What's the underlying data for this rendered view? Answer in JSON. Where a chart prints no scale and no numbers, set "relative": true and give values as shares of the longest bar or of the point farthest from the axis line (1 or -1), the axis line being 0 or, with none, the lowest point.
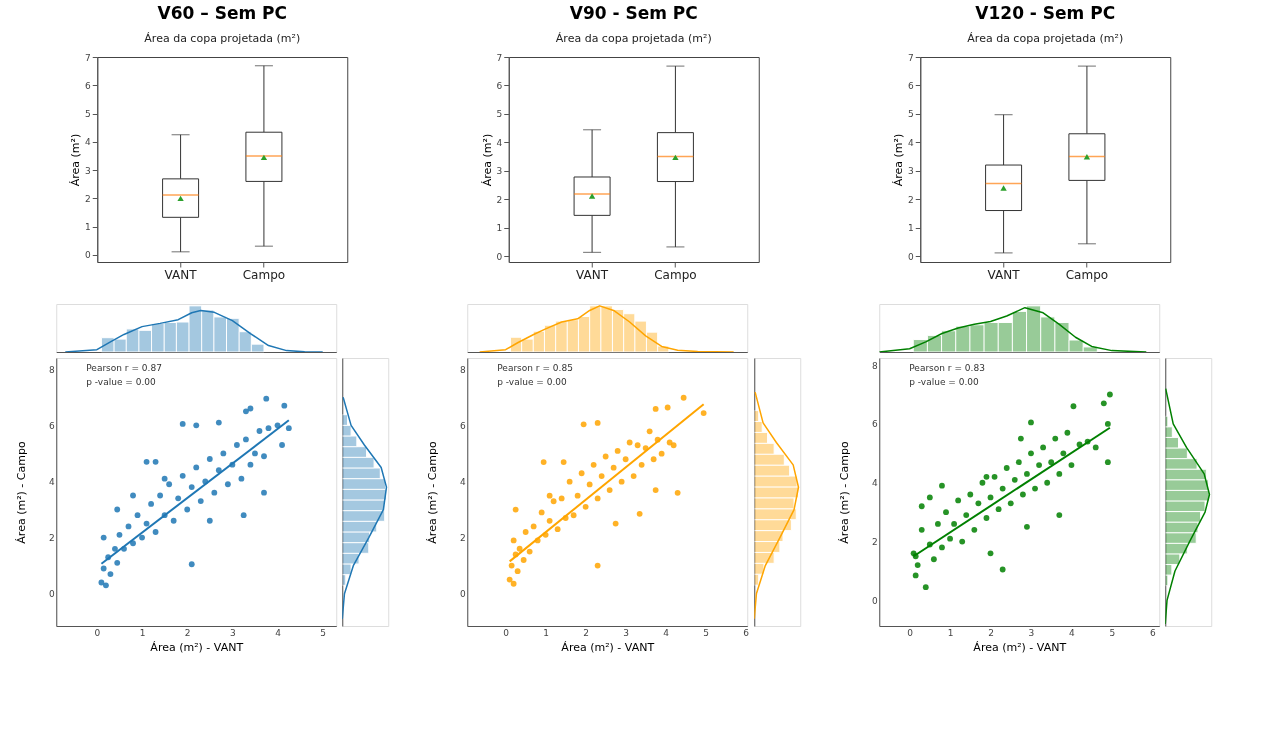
{
  "chart_data": [
    {
      "type": "box",
      "title": "V60 – Sem PC",
      "subtitle": "Área da copa projetada (m²)",
      "ylabel": "Área (m²)",
      "categories": [
        "VANT",
        "Campo"
      ],
      "ylim": [
        -0.25,
        7
      ],
      "yticks": [
        0,
        1,
        2,
        3,
        4,
        5,
        6,
        7
      ],
      "grid": false,
      "boxes": [
        {
          "low": 0.11,
          "q1": 1.33,
          "median": 2.12,
          "q3": 2.69,
          "high": 4.25,
          "mean": 2.0
        },
        {
          "low": 0.31,
          "q1": 2.6,
          "median": 3.5,
          "q3": 4.34,
          "high": 6.69,
          "mean": 3.45
        }
      ]
    },
    {
      "type": "histogram",
      "relative": true,
      "color": "#1f77b4",
      "xlim": [
        -0.9,
        5.3
      ],
      "tick_labels": false,
      "bins": [
        0.1,
        0.38,
        0.65,
        0.93,
        1.21,
        1.49,
        1.76,
        2.04,
        2.32,
        2.59,
        2.87,
        3.15,
        3.42,
        3.7
      ],
      "values": [
        0.31,
        0.28,
        0.5,
        0.47,
        0.62,
        0.64,
        0.65,
        1,
        0.91,
        0.76,
        0.73,
        0.44,
        0.17
      ],
      "series": [
        {
          "type": "line",
          "color": "#1f77b4",
          "x": [
            -0.7,
            0,
            0.3,
            0.6,
            1.0,
            1.4,
            1.8,
            2.1,
            2.3,
            2.6,
            3.0,
            3.4,
            3.8,
            4.2,
            4.6,
            5.0
          ],
          "values": [
            0,
            0.05,
            0.22,
            0.38,
            0.55,
            0.62,
            0.7,
            0.85,
            0.9,
            0.86,
            0.68,
            0.4,
            0.14,
            0.03,
            0.005,
            0
          ]
        }
      ]
    },
    {
      "type": "scatter",
      "xlabel": "Área (m²) - VANT",
      "ylabel": "Área (m²) - Campo",
      "xlim": [
        -0.9,
        5.3
      ],
      "ylim": [
        -1.15,
        8.4
      ],
      "xticks": [
        0,
        1,
        2,
        3,
        4,
        5
      ],
      "yticks": [
        0,
        2,
        4,
        6,
        8
      ],
      "grid": false,
      "annotations": [
        "Pearson r = 0.87",
        "p -value = 0.00"
      ],
      "series": [
        {
          "type": "scatter",
          "color": "#1f77b4",
          "x": [
            0.1,
            0.15,
            0.2,
            0.25,
            0.3,
            0.15,
            0.4,
            0.45,
            0.5,
            0.6,
            0.7,
            0.8,
            0.9,
            1.0,
            1.1,
            1.2,
            1.3,
            1.4,
            1.5,
            1.6,
            1.7,
            1.8,
            1.9,
            2.0,
            2.1,
            2.2,
            2.3,
            2.4,
            2.5,
            2.6,
            2.7,
            2.8,
            2.9,
            3.0,
            3.1,
            3.2,
            3.3,
            3.4,
            3.5,
            3.6,
            3.7,
            3.8,
            4.0,
            4.15,
            4.25,
            1.1,
            1.3,
            1.9,
            2.2,
            2.1,
            3.25,
            3.7,
            0.45,
            0.8,
            2.7,
            3.3,
            3.4,
            4.1,
            2.5,
            1.5,
            3.75
          ],
          "values": [
            0.4,
            0.9,
            0.3,
            1.3,
            0.7,
            2.0,
            1.6,
            1.1,
            2.1,
            1.6,
            2.4,
            1.8,
            2.8,
            2.0,
            2.5,
            3.2,
            2.2,
            3.5,
            2.8,
            3.9,
            2.6,
            3.4,
            4.2,
            3.0,
            3.8,
            4.5,
            3.3,
            4.0,
            4.8,
            3.6,
            4.4,
            5.0,
            3.9,
            4.6,
            5.3,
            4.1,
            5.5,
            4.6,
            5.0,
            5.8,
            4.9,
            5.9,
            6.0,
            6.7,
            5.9,
            4.7,
            4.7,
            6.05,
            6.0,
            1.05,
            2.8,
            3.6,
            3.0,
            3.5,
            6.1,
            6.5,
            6.6,
            5.3,
            2.6,
            4.1,
            6.95
          ]
        },
        {
          "type": "line",
          "color": "#1f77b4",
          "x": [
            0.1,
            4.25
          ],
          "values": [
            1.07,
            6.18
          ]
        }
      ]
    },
    {
      "type": "histogram",
      "orientation": "horizontal",
      "relative": true,
      "color": "#1f77b4",
      "ylim": [
        -1.15,
        8.4
      ],
      "tick_labels": false,
      "bins": [
        0.3,
        0.68,
        1.06,
        1.44,
        1.82,
        2.2,
        2.58,
        2.96,
        3.34,
        3.72,
        4.1,
        4.48,
        4.86,
        5.24,
        5.62,
        6.0,
        6.38
      ],
      "values": [
        0.08,
        0.2,
        0.38,
        0.6,
        0.62,
        0.78,
        0.96,
        0.96,
        1,
        0.98,
        0.86,
        0.72,
        0.55,
        0.33,
        0.2,
        0.12
      ],
      "series": [
        {
          "type": "line",
          "color": "#1f77b4",
          "x": [
            -0.9,
            0,
            1,
            2,
            3,
            3.8,
            4.5,
            5.3,
            6,
            7
          ],
          "values": [
            0,
            0.05,
            0.25,
            0.6,
            0.93,
            1.0,
            0.88,
            0.5,
            0.2,
            0.02
          ]
        }
      ]
    },
    {
      "type": "box",
      "title": "V90 - Sem PC",
      "subtitle": "Área da copa projetada (m²)",
      "ylabel": "Área (m²)",
      "categories": [
        "VANT",
        "Campo"
      ],
      "ylim": [
        -0.21,
        7
      ],
      "yticks": [
        0,
        1,
        2,
        3,
        4,
        5,
        6,
        7
      ],
      "grid": false,
      "boxes": [
        {
          "low": 0.13,
          "q1": 1.43,
          "median": 2.18,
          "q3": 2.78,
          "high": 4.44,
          "mean": 2.11
        },
        {
          "low": 0.32,
          "q1": 2.62,
          "median": 3.5,
          "q3": 4.34,
          "high": 6.68,
          "mean": 3.47
        }
      ]
    },
    {
      "type": "histogram",
      "relative": true,
      "color": "#ffa500",
      "xlim": [
        -0.96,
        6.04
      ],
      "tick_labels": false,
      "bins": [
        0.12,
        0.4,
        0.69,
        0.97,
        1.25,
        1.54,
        1.82,
        2.1,
        2.38,
        2.67,
        2.95,
        3.23,
        3.52,
        3.8,
        4.08
      ],
      "values": [
        0.32,
        0.28,
        0.45,
        0.58,
        0.67,
        0.7,
        0.77,
        1,
        1,
        0.92,
        0.83,
        0.67,
        0.43,
        0.13
      ],
      "series": [
        {
          "type": "line",
          "color": "#ffa500",
          "x": [
            -0.65,
            0,
            0.3,
            0.7,
            1.0,
            1.4,
            1.8,
            2.1,
            2.35,
            2.7,
            3.1,
            3.5,
            3.9,
            4.3,
            4.8,
            5.7
          ],
          "values": [
            0,
            0.05,
            0.2,
            0.38,
            0.5,
            0.65,
            0.72,
            0.9,
            1.0,
            0.9,
            0.65,
            0.35,
            0.12,
            0.04,
            0.01,
            0
          ]
        }
      ]
    },
    {
      "type": "scatter",
      "xlabel": "Área (m²) - VANT",
      "ylabel": "Área (m²) - Campo",
      "xlim": [
        -0.96,
        6.04
      ],
      "ylim": [
        -1.16,
        8.42
      ],
      "xticks": [
        0,
        1,
        2,
        3,
        4,
        5,
        6
      ],
      "yticks": [
        0,
        2,
        4,
        6,
        8
      ],
      "grid": false,
      "annotations": [
        "Pearson r = 0.85",
        "p -value = 0.00"
      ],
      "series": [
        {
          "type": "scatter",
          "color": "#ffa500",
          "x": [
            0.1,
            0.15,
            0.2,
            0.25,
            0.3,
            0.2,
            0.35,
            0.45,
            0.5,
            0.6,
            0.7,
            0.8,
            0.9,
            1.0,
            1.1,
            1.2,
            1.3,
            1.4,
            1.5,
            1.6,
            1.7,
            1.8,
            1.9,
            2.0,
            2.1,
            2.2,
            2.3,
            2.4,
            2.5,
            2.6,
            2.7,
            2.8,
            2.9,
            3.0,
            3.1,
            3.2,
            3.3,
            3.4,
            3.5,
            3.6,
            3.7,
            3.8,
            3.9,
            4.1,
            4.2,
            4.45,
            4.95,
            4.05,
            3.75,
            1.95,
            2.3,
            0.95,
            1.45,
            2.3,
            3.35,
            4.3,
            3.75,
            0.25,
            1.1,
            2.75
          ],
          "values": [
            0.5,
            1.0,
            0.35,
            1.4,
            0.8,
            1.9,
            1.6,
            1.2,
            2.2,
            1.5,
            2.4,
            1.9,
            2.9,
            2.1,
            2.6,
            3.3,
            2.3,
            3.4,
            2.7,
            4.0,
            2.8,
            3.5,
            4.3,
            3.1,
            3.9,
            4.6,
            3.4,
            4.2,
            4.9,
            3.7,
            4.5,
            5.1,
            4.0,
            4.8,
            5.4,
            4.2,
            5.3,
            4.6,
            5.2,
            5.8,
            4.8,
            5.5,
            5.0,
            5.4,
            5.3,
            7.0,
            6.45,
            6.65,
            6.6,
            6.05,
            6.1,
            4.7,
            4.7,
            1.0,
            2.85,
            3.6,
            3.7,
            3.0,
            3.5,
            2.5
          ]
        },
        {
          "type": "line",
          "color": "#ffa500",
          "x": [
            0.1,
            4.95
          ],
          "values": [
            1.15,
            6.77
          ]
        }
      ]
    },
    {
      "type": "histogram",
      "orientation": "horizontal",
      "relative": true,
      "color": "#ffa500",
      "ylim": [
        -1.16,
        8.42
      ],
      "tick_labels": false,
      "bins": [
        0.3,
        0.69,
        1.08,
        1.47,
        1.86,
        2.25,
        2.64,
        3.03,
        3.42,
        3.81,
        4.2,
        4.59,
        4.98,
        5.37,
        5.76,
        6.15,
        6.54
      ],
      "values": [
        0.1,
        0.22,
        0.45,
        0.58,
        0.65,
        0.84,
        0.95,
        0.9,
        1,
        0.97,
        0.8,
        0.68,
        0.45,
        0.3,
        0.18,
        0.1
      ],
      "series": [
        {
          "type": "line",
          "color": "#ffa500",
          "x": [
            -0.9,
            0,
            1,
            2,
            3,
            3.8,
            4.6,
            5.4,
            6.1,
            7.2
          ],
          "values": [
            0,
            0.05,
            0.25,
            0.58,
            0.9,
            1.0,
            0.88,
            0.5,
            0.2,
            0.02
          ]
        }
      ]
    },
    {
      "type": "box",
      "title": "V120 - Sem PC",
      "subtitle": "Área da copa projetada (m²)",
      "ylabel": "Área (m²)",
      "categories": [
        "VANT",
        "Campo"
      ],
      "ylim": [
        -0.21,
        7
      ],
      "yticks": [
        0,
        1,
        2,
        3,
        4,
        5,
        6,
        7
      ],
      "grid": false,
      "boxes": [
        {
          "low": 0.11,
          "q1": 1.6,
          "median": 2.55,
          "q3": 3.2,
          "high": 4.97,
          "mean": 2.39
        },
        {
          "low": 0.43,
          "q1": 2.66,
          "median": 3.5,
          "q3": 4.3,
          "high": 6.68,
          "mean": 3.49
        }
      ]
    },
    {
      "type": "histogram",
      "relative": true,
      "color": "#008000",
      "xlim": [
        -0.75,
        6.17
      ],
      "tick_labels": false,
      "bins": [
        0.09,
        0.44,
        0.79,
        1.14,
        1.49,
        1.84,
        2.19,
        2.54,
        2.89,
        3.24,
        3.59,
        3.94,
        4.29,
        4.64
      ],
      "values": [
        0.27,
        0.36,
        0.46,
        0.56,
        0.59,
        0.64,
        0.64,
        0.88,
        1,
        0.76,
        0.64,
        0.26,
        0.11
      ],
      "series": [
        {
          "type": "line",
          "color": "#008000",
          "x": [
            -0.75,
            0,
            0.4,
            0.8,
            1.2,
            1.6,
            2.0,
            2.4,
            2.85,
            3.3,
            3.7,
            4.1,
            4.5,
            5.0,
            5.85
          ],
          "values": [
            0,
            0.07,
            0.22,
            0.4,
            0.52,
            0.6,
            0.66,
            0.78,
            0.96,
            0.85,
            0.6,
            0.32,
            0.12,
            0.03,
            0
          ]
        }
      ]
    },
    {
      "type": "scatter",
      "xlabel": "Área (m²) - VANT",
      "ylabel": "Área (m²) - Campo",
      "xlim": [
        -0.75,
        6.17
      ],
      "ylim": [
        -0.87,
        8.24
      ],
      "xticks": [
        0,
        1,
        2,
        3,
        4,
        5,
        6
      ],
      "yticks": [
        0,
        2,
        4,
        6,
        8
      ],
      "grid": false,
      "annotations": [
        "Pearson r = 0.83",
        "p -value = 0.00"
      ],
      "series": [
        {
          "type": "scatter",
          "color": "#008000",
          "x": [
            0.1,
            0.15,
            0.2,
            0.3,
            0.4,
            0.15,
            0.5,
            0.3,
            0.6,
            0.7,
            0.8,
            0.9,
            1.0,
            1.1,
            1.2,
            1.3,
            1.4,
            1.5,
            1.6,
            1.7,
            1.8,
            1.9,
            2.0,
            2.1,
            2.2,
            2.3,
            2.4,
            2.5,
            2.6,
            2.7,
            2.8,
            2.9,
            3.0,
            3.1,
            3.2,
            3.3,
            3.4,
            3.5,
            3.6,
            3.7,
            3.8,
            3.9,
            4.0,
            4.2,
            4.4,
            4.6,
            4.95,
            4.8,
            4.05,
            3.0,
            2.75,
            0.8,
            0.5,
            1.9,
            2.3,
            2.0,
            4.9,
            3.7,
            2.9,
            4.9
          ],
          "values": [
            1.6,
            0.85,
            1.2,
            3.2,
            0.45,
            1.5,
            1.9,
            2.4,
            1.4,
            2.6,
            1.8,
            3.0,
            2.1,
            2.6,
            3.4,
            2.0,
            2.9,
            3.6,
            2.4,
            3.3,
            4.0,
            2.8,
            3.5,
            4.2,
            3.1,
            3.8,
            4.5,
            3.3,
            4.1,
            4.7,
            3.6,
            4.3,
            5.0,
            3.8,
            4.6,
            5.2,
            4.0,
            4.7,
            5.5,
            4.3,
            5.0,
            5.7,
            4.6,
            5.3,
            5.4,
            5.2,
            7.0,
            6.7,
            6.6,
            6.05,
            5.5,
            3.9,
            3.5,
            4.2,
            1.05,
            1.6,
            4.7,
            2.9,
            2.5,
            6.0
          ]
        },
        {
          "type": "line",
          "color": "#008000",
          "x": [
            0.1,
            4.95
          ],
          "values": [
            1.5,
            5.87
          ]
        }
      ]
    },
    {
      "type": "histogram",
      "orientation": "horizontal",
      "relative": true,
      "color": "#008000",
      "ylim": [
        -0.87,
        8.24
      ],
      "tick_labels": false,
      "bins": [
        0.5,
        0.86,
        1.22,
        1.58,
        1.94,
        2.3,
        2.66,
        3.02,
        3.38,
        3.74,
        4.1,
        4.46,
        4.82,
        5.18,
        5.54,
        5.9,
        6.26
      ],
      "values": [
        0.06,
        0.15,
        0.33,
        0.5,
        0.7,
        0.74,
        0.8,
        0.9,
        1,
        0.98,
        0.93,
        0.72,
        0.5,
        0.3,
        0.16,
        0.06
      ],
      "series": [
        {
          "type": "line",
          "color": "#008000",
          "x": [
            -0.8,
            0,
            1,
            2,
            3,
            3.6,
            4.3,
            5.2,
            6,
            7.2
          ],
          "values": [
            0,
            0.04,
            0.22,
            0.55,
            0.9,
            1.0,
            0.88,
            0.48,
            0.18,
            0.01
          ]
        }
      ]
    }
  ]
}
